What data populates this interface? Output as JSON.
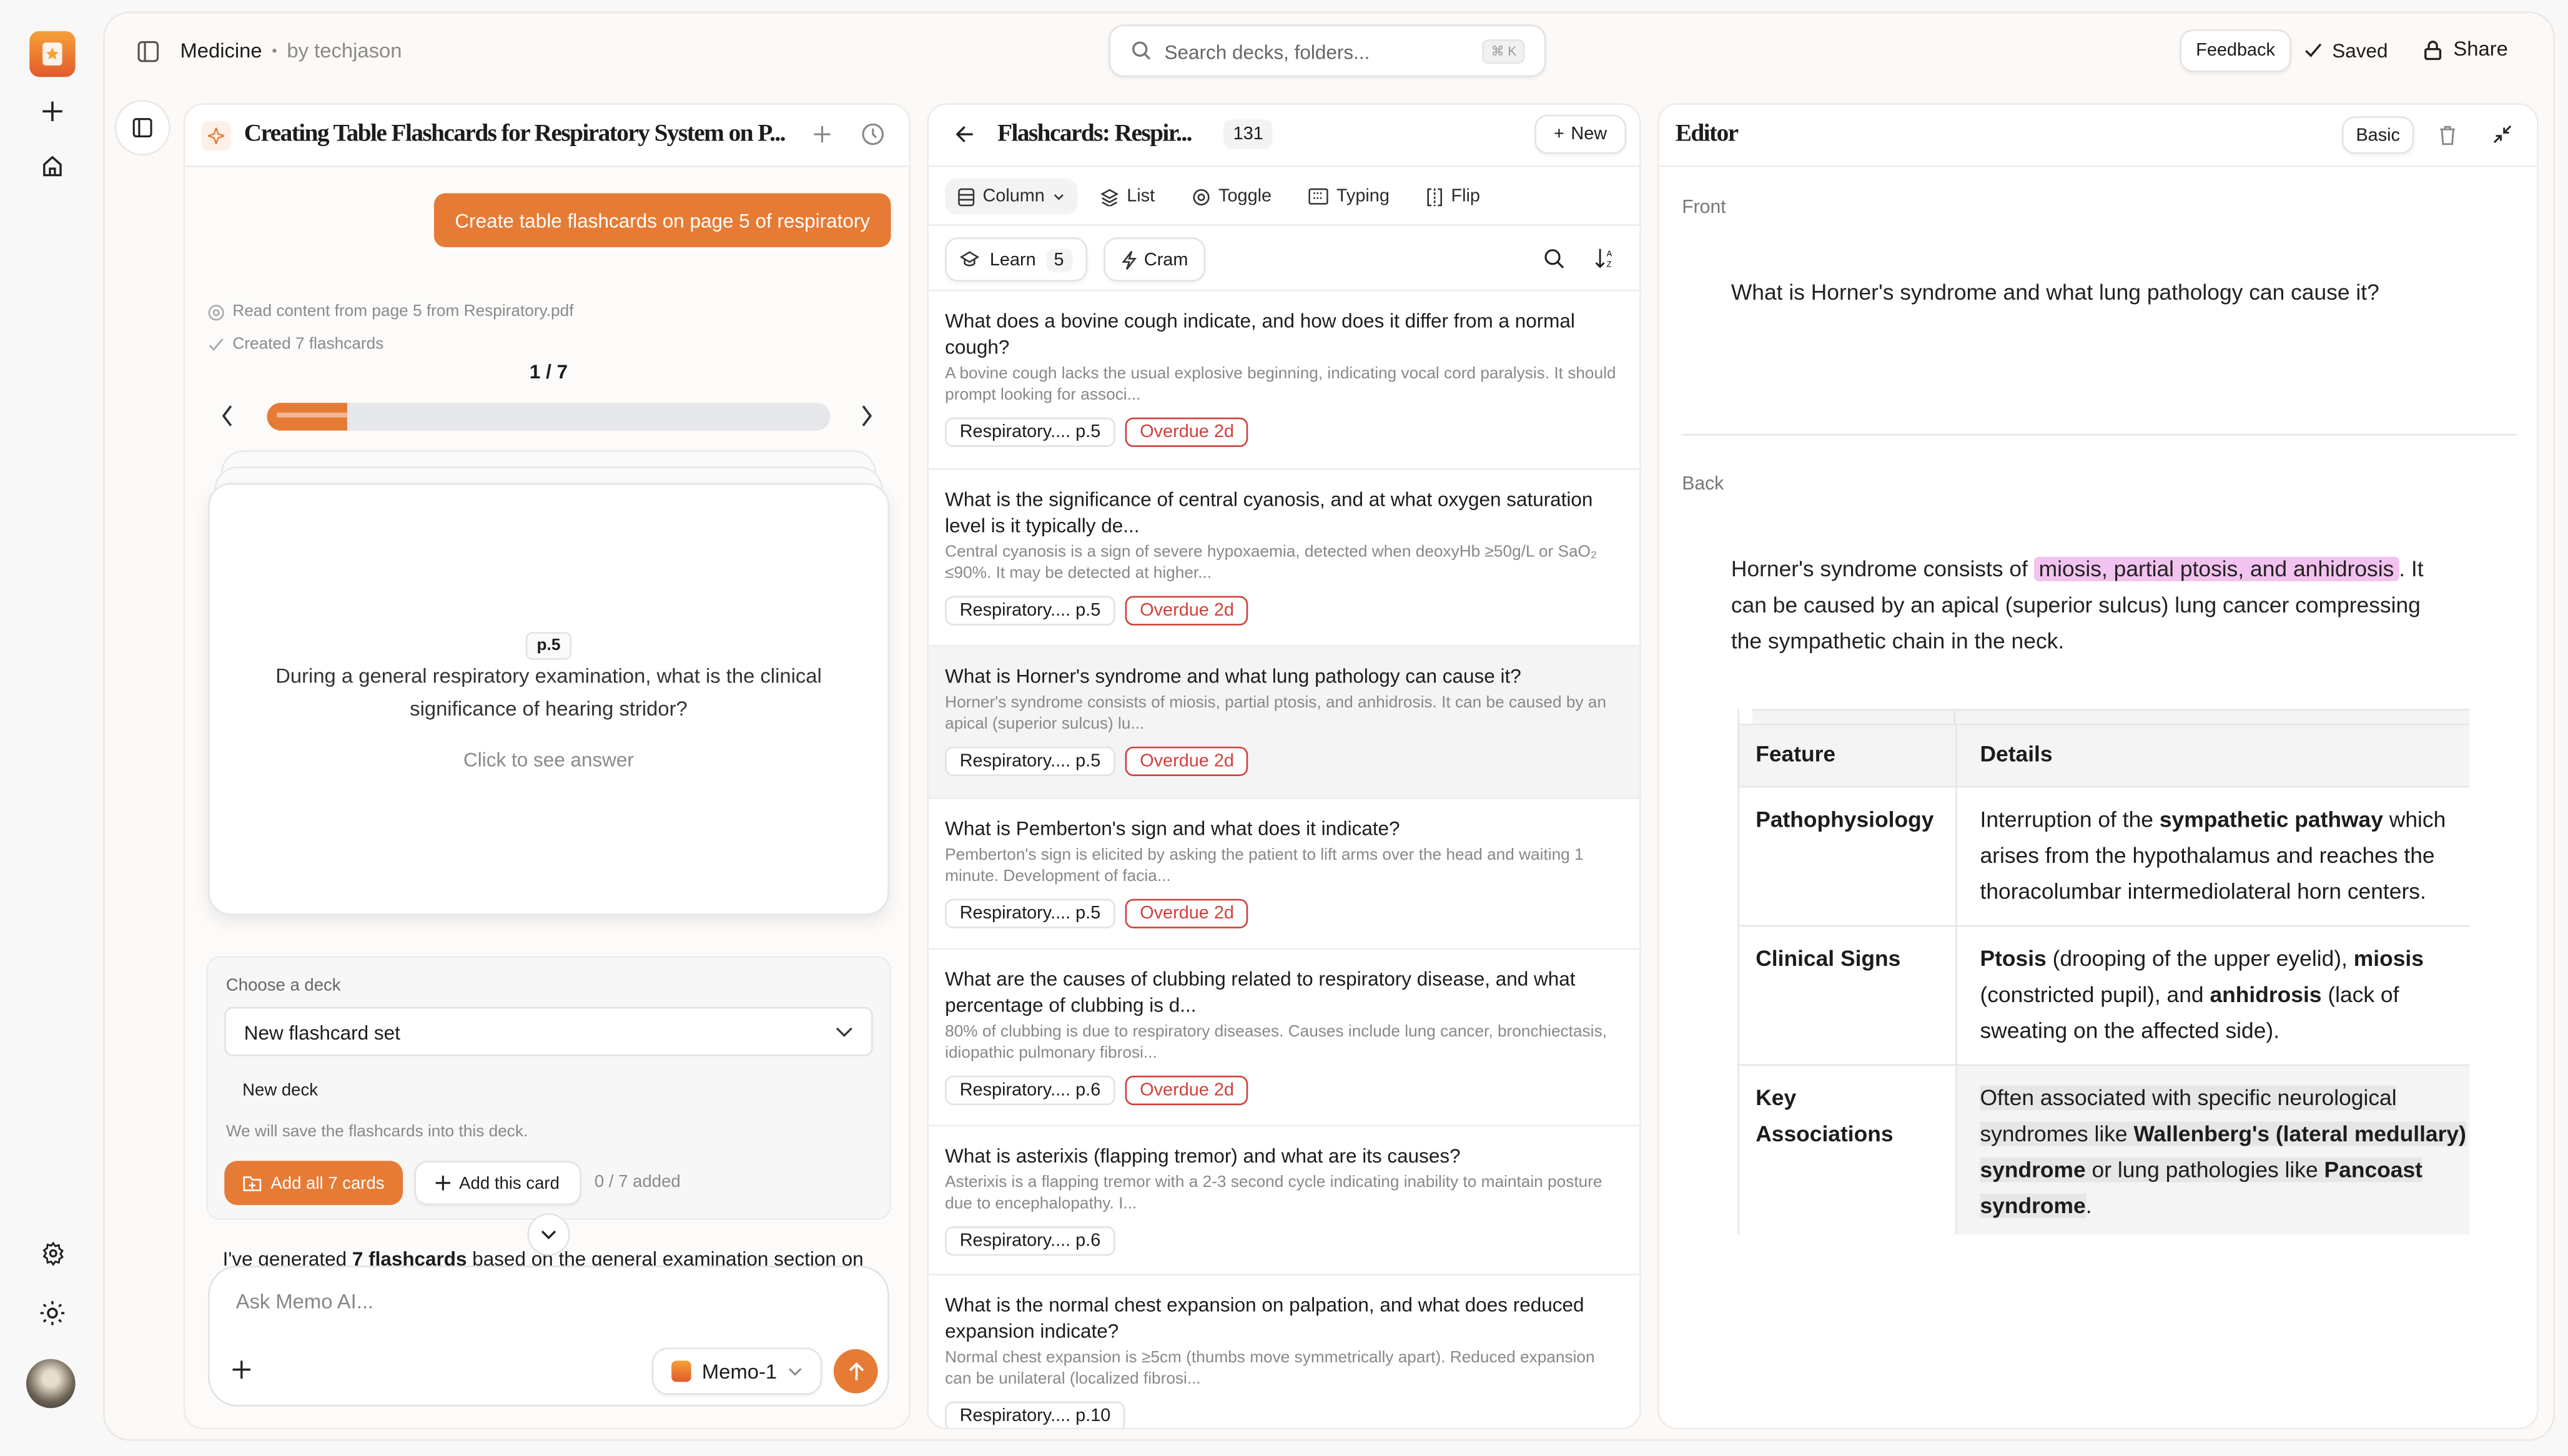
{
  "colors": {
    "accent": "#e67b35",
    "overdue": "#d0413a",
    "highlight": "#f3c3ef"
  },
  "rail": {
    "icons": [
      "logo-icon",
      "plus-icon",
      "home-icon",
      "gear-icon",
      "sun-icon",
      "avatar"
    ]
  },
  "topbar": {
    "workspace": "Medicine",
    "separator": "•",
    "author": "by techjason",
    "search_placeholder": "Search decks, folders...",
    "search_shortcut": "⌘ K",
    "feedback": "Feedback",
    "saved": "Saved",
    "share": "Share"
  },
  "chat": {
    "title": "Creating Table Flashcards for Respiratory System on P...",
    "user_message": "Create table flashcards on page 5 of respiratory",
    "status": [
      "Read content from page 5 from Respiratory.pdf",
      "Created 7 flashcards"
    ],
    "pager": "1 / 7",
    "progress": 0.143,
    "card": {
      "page": "p.5",
      "question": "During a general respiratory examination, what is the clinical significance of hearing stridor?",
      "hint": "Click to see answer"
    },
    "deck": {
      "label": "Choose a deck",
      "selected": "New flashcard set",
      "option": "New deck",
      "helper": "We will save the flashcards into this deck.",
      "add_all": "Add all 7 cards",
      "add_this": "Add this card",
      "added": "0 / 7 added"
    },
    "summary_pre": "I've generated ",
    "summary_bold": "7 flashcards",
    "summary_post": " based on the general examination section on",
    "input_placeholder": "Ask Memo AI...",
    "model": "Memo-1"
  },
  "deck": {
    "title": "Flashcards: Respir...",
    "count": "131",
    "new": "New",
    "tabs": [
      {
        "label": "Column",
        "icon": "column-icon"
      },
      {
        "label": "List",
        "icon": "layers-icon"
      },
      {
        "label": "Toggle",
        "icon": "toggle-icon"
      },
      {
        "label": "Typing",
        "icon": "keyboard-icon"
      },
      {
        "label": "Flip",
        "icon": "flip-icon"
      }
    ],
    "learn": "Learn",
    "learn_count": "5",
    "cram": "Cram",
    "items": [
      {
        "q": "What does a bovine cough indicate, and how does it differ from a normal cough?",
        "a": "A bovine cough lacks the usual explosive beginning, indicating vocal cord paralysis. It should prompt looking for associ...",
        "source": "Respiratory.... p.5",
        "due": "Overdue 2d",
        "selected": false
      },
      {
        "q": "What is the significance of central cyanosis, and at what oxygen saturation level is it typically de...",
        "a": "Central cyanosis is a sign of severe hypoxaemia, detected when deoxyHb ≥50g/L or SaO₂ ≤90%. It may be detected at higher...",
        "source": "Respiratory.... p.5",
        "due": "Overdue 2d",
        "selected": false
      },
      {
        "q": "What is Horner's syndrome and what lung pathology can cause it?",
        "a": "Horner's syndrome consists of miosis, partial ptosis, and anhidrosis. It can be caused by an apical (superior sulcus) lu...",
        "source": "Respiratory.... p.5",
        "due": "Overdue 2d",
        "selected": true
      },
      {
        "q": "What is Pemberton's sign and what does it indicate?",
        "a": "Pemberton's sign is elicited by asking the patient to lift arms over the head and waiting 1 minute. Development of facia...",
        "source": "Respiratory.... p.5",
        "due": "Overdue 2d",
        "selected": false
      },
      {
        "q": "What are the causes of clubbing related to respiratory disease, and what percentage of clubbing is d...",
        "a": "80% of clubbing is due to respiratory diseases. Causes include lung cancer, bronchiectasis, idiopathic pulmonary fibrosi...",
        "source": "Respiratory.... p.6",
        "due": "Overdue 2d",
        "selected": false
      },
      {
        "q": "What is asterixis (flapping tremor) and what are its causes?",
        "a": "Asterixis is a flapping tremor with a 2-3 second cycle indicating inability to maintain posture due to encephalopathy. I...",
        "source": "Respiratory.... p.6",
        "due": "",
        "selected": false
      },
      {
        "q": "What is the normal chest expansion on palpation, and what does reduced expansion indicate?",
        "a": "Normal chest expansion is ≥5cm (thumbs move symmetrically apart). Reduced expansion can be unilateral (localized fibrosi...",
        "source": "Respiratory.... p.10",
        "due": "",
        "selected": false
      }
    ]
  },
  "editor": {
    "title": "Editor",
    "type": "Basic",
    "front_label": "Front",
    "front": "What is Horner's syndrome and what lung pathology can cause it?",
    "back_label": "Back",
    "back": [
      {
        "t": "Horner's syndrome consists of "
      },
      {
        "t": "miosis, partial ptosis, and anhidrosis",
        "hl": true
      },
      {
        "t": ". It can be caused by an apical (superior sulcus) lung cancer compressing the sympathetic chain in the neck."
      }
    ],
    "table": {
      "headers": [
        "Feature",
        "Details"
      ],
      "rows": [
        {
          "feature": "Pathophysiology",
          "details": [
            {
              "t": "Interruption of the "
            },
            {
              "t": "sympathetic pathway",
              "b": true
            },
            {
              "t": " which arises from the hypothalamus and reaches the thoracolumbar intermediolateral horn centers."
            }
          ]
        },
        {
          "feature": "Clinical Signs",
          "details": [
            {
              "t": "Ptosis",
              "b": true
            },
            {
              "t": " (drooping of the upper eyelid), "
            },
            {
              "t": "miosis",
              "b": true
            },
            {
              "t": " (constricted pupil), and "
            },
            {
              "t": "anhidrosis",
              "b": true
            },
            {
              "t": " (lack of sweating on the affected side)."
            }
          ]
        },
        {
          "feature": "Key Associations",
          "details": [
            {
              "t": "Often associated with specific neurological syndromes like ",
              "g": true
            },
            {
              "t": "Wallenberg's (lateral medullary) syndrome",
              "b": true,
              "g": true
            },
            {
              "t": " or lung pathologies like ",
              "g": true
            },
            {
              "t": "Pancoast syndrome",
              "b": true,
              "g": true
            },
            {
              "t": "."
            }
          ]
        }
      ]
    }
  }
}
